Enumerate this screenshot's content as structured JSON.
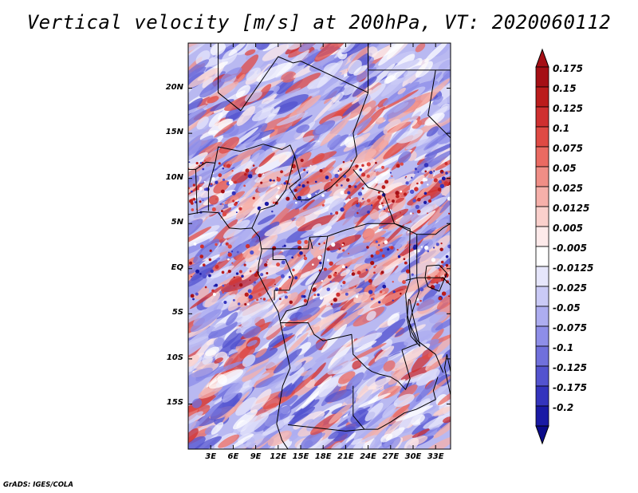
{
  "title": "Vertical velocity [m/s] at 200hPa, VT: 2020060112",
  "credit": "GrADS: IGES/COLA",
  "map": {
    "lon_range": [
      0,
      35
    ],
    "lat_range": [
      -20,
      25
    ],
    "lat_ticks": [
      {
        "value": 20,
        "label": "20N"
      },
      {
        "value": 15,
        "label": "15N"
      },
      {
        "value": 10,
        "label": "10N"
      },
      {
        "value": 5,
        "label": "5N"
      },
      {
        "value": 0,
        "label": "EQ"
      },
      {
        "value": -5,
        "label": "5S"
      },
      {
        "value": -10,
        "label": "10S"
      },
      {
        "value": -15,
        "label": "15S"
      }
    ],
    "lon_ticks": [
      {
        "value": 3,
        "label": "3E"
      },
      {
        "value": 6,
        "label": "6E"
      },
      {
        "value": 9,
        "label": "9E"
      },
      {
        "value": 12,
        "label": "12E"
      },
      {
        "value": 15,
        "label": "15E"
      },
      {
        "value": 18,
        "label": "18E"
      },
      {
        "value": 21,
        "label": "21E"
      },
      {
        "value": 24,
        "label": "24E"
      },
      {
        "value": 27,
        "label": "27E"
      },
      {
        "value": 30,
        "label": "30E"
      },
      {
        "value": 33,
        "label": "33E"
      }
    ]
  },
  "colorbar": {
    "levels": [
      {
        "label": "0.175",
        "color": "#a50f15"
      },
      {
        "label": "0.15",
        "color": "#bb1c1c"
      },
      {
        "label": "0.125",
        "color": "#cf3030"
      },
      {
        "label": "0.1",
        "color": "#df4a44"
      },
      {
        "label": "0.075",
        "color": "#ea6a62"
      },
      {
        "label": "0.05",
        "color": "#f08e86"
      },
      {
        "label": "0.025",
        "color": "#f6b0aa"
      },
      {
        "label": "0.0125",
        "color": "#fad0cc"
      },
      {
        "label": "0.005",
        "color": "#fdeaea"
      },
      {
        "label": "-0.005",
        "color": "#ffffff"
      },
      {
        "label": "-0.0125",
        "color": "#e6e6fb"
      },
      {
        "label": "-0.025",
        "color": "#cacaf6"
      },
      {
        "label": "-0.05",
        "color": "#adadf0"
      },
      {
        "label": "-0.075",
        "color": "#8e8ee8"
      },
      {
        "label": "-0.1",
        "color": "#7070dc"
      },
      {
        "label": "-0.125",
        "color": "#5353cf"
      },
      {
        "label": "-0.175",
        "color": "#3434bd"
      },
      {
        "label": "-0.2",
        "color": "#1a1aa5"
      }
    ],
    "top_color": "#a50f15",
    "bottom_color": "#0b0b8a"
  }
}
